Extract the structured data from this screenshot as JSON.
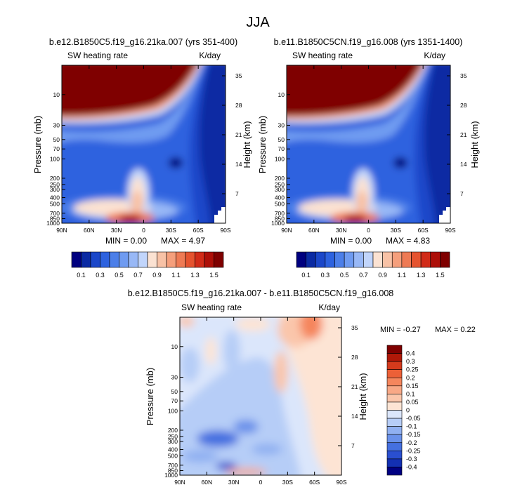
{
  "main_title": "JJA",
  "chart_data": [
    {
      "type": "heatmap",
      "id": "left",
      "title": "b.e12.B1850C5.f19_g16.21ka.007 (yrs 351-400)",
      "field_label": "SW heating rate",
      "units_label": "K/day",
      "ylabel": "Pressure (mb)",
      "ylabel_right": "Height (km)",
      "x_ticks": [
        "90N",
        "60N",
        "30N",
        "0",
        "30S",
        "60S",
        "90S"
      ],
      "xlim": [
        90,
        -90
      ],
      "pressure_ticks": [
        10,
        30,
        50,
        70,
        100,
        200,
        250,
        300,
        400,
        500,
        700,
        850,
        1000
      ],
      "height_ticks": [
        35,
        28,
        21,
        14,
        7
      ],
      "min_label": "MIN =   0.00",
      "max_label": "MAX =  4.97",
      "min": 0.0,
      "max": 4.97,
      "levels": [
        0.1,
        0.2,
        0.3,
        0.4,
        0.5,
        0.6,
        0.7,
        0.8,
        0.9,
        1.0,
        1.1,
        1.2,
        1.3,
        1.4,
        1.5
      ],
      "colorbar_labels": [
        "0.1",
        "0.3",
        "0.5",
        "0.7",
        "0.9",
        "1.1",
        "1.3",
        "1.5"
      ]
    },
    {
      "type": "heatmap",
      "id": "right",
      "title": "b.e11.B1850C5CN.f19_g16.008 (yrs 1351-1400)",
      "field_label": "SW heating rate",
      "units_label": "K/day",
      "ylabel": "Pressure (mb)",
      "ylabel_right": "Height (km)",
      "x_ticks": [
        "90N",
        "60N",
        "30N",
        "0",
        "30S",
        "60S",
        "90S"
      ],
      "xlim": [
        90,
        -90
      ],
      "pressure_ticks": [
        10,
        30,
        50,
        70,
        100,
        200,
        250,
        300,
        400,
        500,
        700,
        850,
        1000
      ],
      "height_ticks": [
        35,
        28,
        21,
        14,
        7
      ],
      "min_label": "MIN =   0.00",
      "max_label": "MAX =  4.83",
      "min": 0.0,
      "max": 4.83,
      "levels": [
        0.1,
        0.2,
        0.3,
        0.4,
        0.5,
        0.6,
        0.7,
        0.8,
        0.9,
        1.0,
        1.1,
        1.2,
        1.3,
        1.4,
        1.5
      ],
      "colorbar_labels": [
        "0.1",
        "0.3",
        "0.5",
        "0.7",
        "0.9",
        "1.1",
        "1.3",
        "1.5"
      ]
    },
    {
      "type": "heatmap",
      "id": "diff",
      "title": "b.e12.B1850C5.f19_g16.21ka.007 - b.e11.B1850C5CN.f19_g16.008",
      "field_label": "SW heating rate",
      "units_label": "K/day",
      "ylabel": "Pressure (mb)",
      "ylabel_right": "Height (km)",
      "x_ticks": [
        "90N",
        "60N",
        "30N",
        "0",
        "30S",
        "60S",
        "90S"
      ],
      "xlim": [
        90,
        -90
      ],
      "pressure_ticks": [
        10,
        30,
        50,
        70,
        100,
        200,
        250,
        300,
        400,
        500,
        700,
        850,
        1000
      ],
      "height_ticks": [
        35,
        28,
        21,
        14,
        7
      ],
      "min_label": "MIN =  -0.27",
      "max_label": "MAX =  0.22",
      "min": -0.27,
      "max": 0.22,
      "levels": [
        -0.4,
        -0.3,
        -0.25,
        -0.2,
        -0.15,
        -0.1,
        -0.05,
        0,
        0.05,
        0.1,
        0.15,
        0.2,
        0.25,
        0.3,
        0.4
      ],
      "colorbar_labels": [
        "0.4",
        "0.3",
        "0.25",
        "0.2",
        "0.15",
        "0.1",
        "0.05",
        "0",
        "-0.05",
        "-0.1",
        "-0.15",
        "-0.2",
        "-0.25",
        "-0.3",
        "-0.4"
      ]
    }
  ],
  "colors": {
    "seq": [
      "#00007f",
      "#0a2aa3",
      "#1b47c9",
      "#2d62df",
      "#4c7fe9",
      "#6f9bf1",
      "#98b8f6",
      "#c1d5fb",
      "#fbe2d2",
      "#f8c2a6",
      "#f59f7c",
      "#ee7a54",
      "#e5532f",
      "#d12b18",
      "#ad0f08",
      "#7f0000"
    ],
    "div": [
      "#7f0000",
      "#b01808",
      "#d43a1c",
      "#ec6037",
      "#f5865d",
      "#f8a886",
      "#fac6ab",
      "#fde4d4",
      "#dbe6fb",
      "#b6cdf7",
      "#90b0f1",
      "#6a91ea",
      "#4570e0",
      "#2a4fd0",
      "#1330b3",
      "#000082"
    ]
  }
}
